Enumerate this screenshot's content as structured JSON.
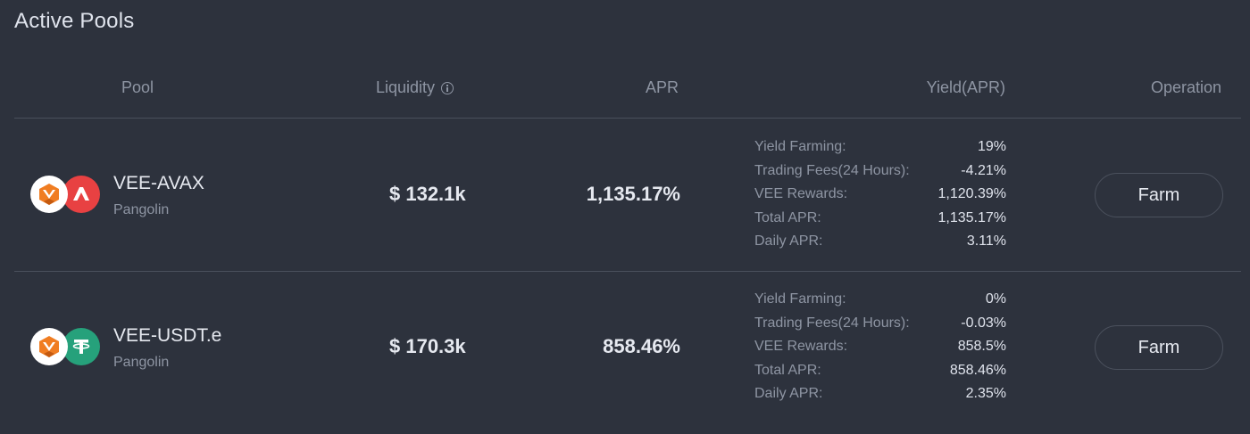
{
  "page": {
    "title": "Active Pools"
  },
  "table": {
    "headers": {
      "pool": "Pool",
      "liquidity": "Liquidity",
      "apr": "APR",
      "yield": "Yield(APR)",
      "operation": "Operation"
    },
    "rows": [
      {
        "pool_name": "VEE-AVAX",
        "source": "Pangolin",
        "token_icons": [
          "vee-token-icon",
          "avax-token-icon"
        ],
        "liquidity": "$ 132.1k",
        "apr": "1,135.17%",
        "yield": [
          {
            "label": "Yield Farming:",
            "value": "19%"
          },
          {
            "label": "Trading Fees(24 Hours):",
            "value": "-4.21%"
          },
          {
            "label": "VEE Rewards:",
            "value": "1,120.39%"
          },
          {
            "label": "Total APR:",
            "value": "1,135.17%"
          },
          {
            "label": "Daily APR:",
            "value": "3.11%"
          }
        ],
        "button_label": "Farm"
      },
      {
        "pool_name": "VEE-USDT.e",
        "source": "Pangolin",
        "token_icons": [
          "vee-token-icon",
          "usdt-token-icon"
        ],
        "liquidity": "$ 170.3k",
        "apr": "858.46%",
        "yield": [
          {
            "label": "Yield Farming:",
            "value": "0%"
          },
          {
            "label": "Trading Fees(24 Hours):",
            "value": "-0.03%"
          },
          {
            "label": "VEE Rewards:",
            "value": "858.5%"
          },
          {
            "label": "Total APR:",
            "value": "858.46%"
          },
          {
            "label": "Daily APR:",
            "value": "2.35%"
          }
        ],
        "button_label": "Farm"
      }
    ]
  },
  "colors": {
    "background": "#2d323d",
    "divider": "#4a505c",
    "muted_text": "#8e95a3",
    "primary_text": "#e6e9f0",
    "vee_orange": "#f07d22",
    "avax_red": "#e84142",
    "usdt_green": "#26a17b"
  }
}
